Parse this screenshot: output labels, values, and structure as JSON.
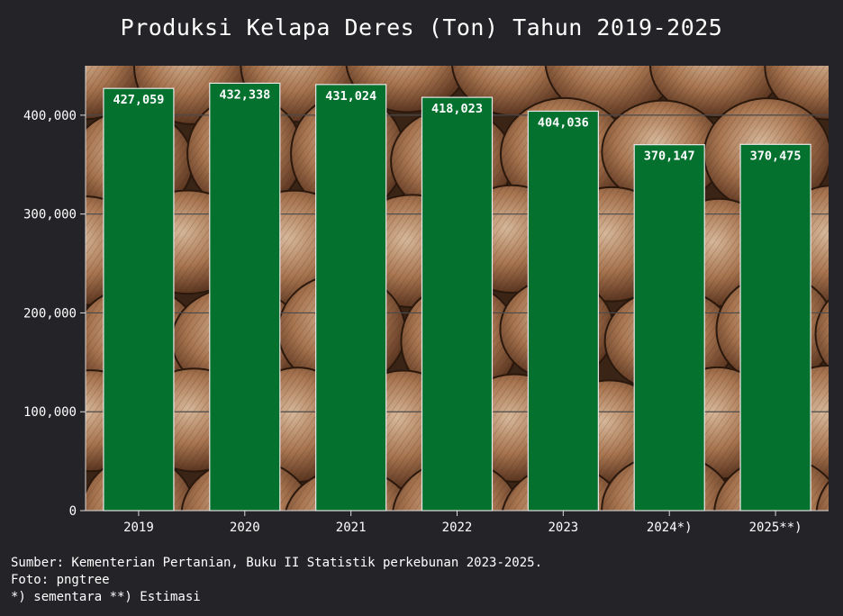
{
  "chart_data": {
    "type": "bar",
    "title": "Produksi Kelapa Deres (Ton) Tahun 2019-2025",
    "categories": [
      "2019",
      "2020",
      "2021",
      "2022",
      "2023",
      "2024*)",
      "2025**)"
    ],
    "values": [
      427059,
      432338,
      431024,
      418023,
      404036,
      370147,
      370475
    ],
    "value_labels": [
      "427,059",
      "432,338",
      "431,024",
      "418,023",
      "404,036",
      "370,147",
      "370,475"
    ],
    "yticks": [
      0,
      100000,
      200000,
      300000,
      400000
    ],
    "ytick_labels": [
      "0",
      "100,000",
      "200,000",
      "300,000",
      "400,000"
    ],
    "ylim": [
      0,
      450000
    ],
    "xlabel": "",
    "ylabel": "",
    "grid": true,
    "bar_color": "#04712f",
    "background_color": "#242428",
    "plot_background": "coconut photo"
  },
  "footnotes": {
    "source": "Sumber: Kementerian Pertanian, Buku II Statistik perkebunan 2023-2025.",
    "photo": "Foto: pngtree",
    "legend_note": "*) sementara **) Estimasi"
  }
}
